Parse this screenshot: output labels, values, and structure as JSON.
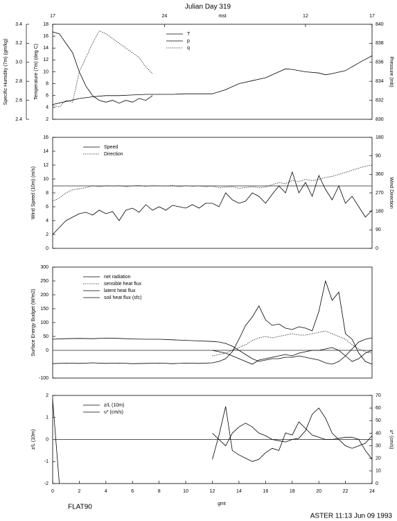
{
  "chart_data": [
    {
      "type": "line",
      "title": "Julian Day 319",
      "xlim": [
        0,
        24
      ],
      "top_xticks": [
        {
          "value": 0,
          "label": "17"
        },
        {
          "value": 8.4,
          "label": "24"
        },
        {
          "value": 19,
          "label": "12"
        },
        {
          "value": 24,
          "label": "17"
        }
      ],
      "top_xlabel": "mst",
      "ylabel": "Temperature (7m) (deg C)",
      "ylim": [
        2,
        18
      ],
      "yticks": [
        2,
        4,
        6,
        8,
        10,
        12,
        14,
        16,
        18
      ],
      "y2label": "Pressure (mb)",
      "y2lim": [
        830,
        840
      ],
      "y2ticks": [
        830,
        832,
        834,
        836,
        838,
        840
      ],
      "y3label": "Specific Humidity (7m) (gm/kg)",
      "y3lim": [
        2.4,
        3.4
      ],
      "y3ticks": [
        2.4,
        2.6,
        2.8,
        {
          "value": 3,
          "label": "3.0"
        },
        3.2,
        3.4
      ],
      "legend": "upper center",
      "series": [
        {
          "name": "T",
          "color": "#000000",
          "axis": "y",
          "dash": false,
          "x": [
            0,
            1,
            2,
            3,
            4,
            5,
            6,
            7,
            8,
            9,
            10,
            11,
            12,
            13,
            14,
            15,
            16,
            17,
            17.5,
            18,
            19,
            20,
            20.5,
            21,
            22,
            23,
            24
          ],
          "values": [
            4.5,
            5,
            5.5,
            5.8,
            6,
            6,
            6.1,
            6.2,
            6.2,
            6.2,
            6.3,
            6.3,
            6.3,
            7,
            8,
            8.5,
            9,
            10,
            10.5,
            10.4,
            10,
            9.8,
            9.5,
            9.7,
            10.2,
            11.5,
            12.7
          ]
        },
        {
          "name": "p",
          "color": "#000000",
          "axis": "y2",
          "dash": false,
          "x": [
            0,
            0.5,
            1,
            1.5,
            2,
            2.5,
            3,
            3.5,
            4,
            4.5,
            5,
            5.5,
            6,
            6.5,
            7,
            7.5
          ],
          "values": [
            839.2,
            839,
            838,
            837,
            835,
            833.5,
            832.5,
            832,
            831.8,
            832,
            831.7,
            832,
            831.8,
            832.2,
            832,
            832.5
          ]
        },
        {
          "name": "q",
          "color": "#000000",
          "axis": "y3",
          "dash": true,
          "x": [
            0,
            0.5,
            1,
            1.5,
            2,
            2.5,
            3,
            3.5,
            4,
            4.5,
            5,
            5.5,
            6,
            6.5,
            7,
            7.5
          ],
          "values": [
            2.55,
            2.53,
            2.6,
            2.58,
            2.9,
            3.05,
            3.2,
            3.33,
            3.3,
            3.25,
            3.2,
            3.15,
            3.1,
            3.05,
            2.95,
            2.88
          ]
        }
      ]
    },
    {
      "type": "line",
      "xlim": [
        0,
        24
      ],
      "ylabel": "Wind Speed (10m) (m/s)",
      "ylim": [
        0,
        16
      ],
      "yticks": [
        0,
        2,
        4,
        6,
        8,
        10,
        12,
        14,
        16
      ],
      "y2label": "Wind Direction",
      "y2lim": [
        0,
        540
      ],
      "y2ticks": [
        0,
        90,
        180,
        270,
        360,
        {
          "value": 450,
          "label": "90"
        },
        {
          "value": 540,
          "label": "180"
        }
      ],
      "hline": 9,
      "legend": "upper left",
      "series": [
        {
          "name": "Speed",
          "color": "#000000",
          "axis": "y",
          "dash": false,
          "x": [
            0,
            0.5,
            1,
            1.5,
            2,
            2.5,
            3,
            3.5,
            4,
            4.5,
            5,
            5.5,
            6,
            6.5,
            7,
            7.5,
            8,
            8.5,
            9,
            9.5,
            10,
            10.5,
            11,
            11.5,
            12,
            12.5,
            13,
            13.5,
            14,
            14.5,
            15,
            15.5,
            16,
            16.5,
            17,
            17.5,
            18,
            18.5,
            19,
            19.5,
            20,
            20.5,
            21,
            21.5,
            22,
            22.5,
            23,
            23.5,
            24
          ],
          "values": [
            2,
            3,
            4,
            4.5,
            5,
            5.2,
            4.8,
            5.5,
            5,
            5.3,
            4,
            5.5,
            5.8,
            5.2,
            6.3,
            5.5,
            6,
            5.5,
            6.2,
            6,
            5.8,
            6.3,
            5.8,
            6.5,
            6.5,
            6,
            8,
            7,
            6.5,
            6.8,
            8,
            7.5,
            6.5,
            7.8,
            9,
            8,
            11,
            8,
            9.5,
            7.5,
            10.5,
            8.5,
            7,
            9,
            6.5,
            7.5,
            6,
            4.5,
            5.5
          ]
        },
        {
          "name": "Direction",
          "color": "#000000",
          "axis": "y2",
          "dash": true,
          "x": [
            0,
            0.5,
            1,
            1.5,
            2,
            2.5,
            3,
            3.5,
            4,
            4.5,
            5,
            5.5,
            6,
            6.5,
            7,
            7.5,
            8,
            8.5,
            9,
            9.5,
            10,
            10.5,
            11,
            11.5,
            12,
            12.5,
            13,
            13.5,
            14,
            14.5,
            15,
            15.5,
            16,
            16.5,
            17,
            17.5,
            18,
            18.5,
            19,
            19.5,
            20,
            20.5,
            21,
            21.5,
            22,
            22.5,
            23,
            23.5,
            24
          ],
          "values": [
            230,
            245,
            270,
            285,
            290,
            295,
            305,
            300,
            305,
            303,
            305,
            300,
            304,
            306,
            302,
            305,
            304,
            303,
            306,
            300,
            305,
            302,
            304,
            300,
            303,
            295,
            298,
            300,
            292,
            296,
            300,
            295,
            298,
            310,
            320,
            315,
            330,
            325,
            335,
            330,
            335,
            345,
            350,
            360,
            370,
            380,
            390,
            400,
            405
          ]
        }
      ]
    },
    {
      "type": "line",
      "xlim": [
        0,
        24
      ],
      "ylabel": "Surface Energy Budget (W/m2)",
      "ylim": [
        -100,
        300
      ],
      "yticks": [
        300,
        250,
        200,
        150,
        100,
        50,
        0,
        -100
      ],
      "hline": 0,
      "legend": "upper left",
      "series": [
        {
          "name": "net radiation",
          "color": "#000000",
          "axis": "y",
          "dash": false,
          "x": [
            0,
            1,
            2,
            3,
            4,
            5,
            6,
            7,
            8,
            9,
            10,
            11,
            12,
            12.5,
            13,
            13.5,
            14,
            14.5,
            15,
            15.5,
            16,
            16.5,
            17,
            17.5,
            18,
            18.5,
            19,
            19.5,
            20,
            20.5,
            21,
            21.5,
            22,
            22.5,
            23,
            23.5,
            24
          ],
          "values": [
            -48,
            -46,
            -47,
            -45,
            -47,
            -46,
            -48,
            -47,
            -46,
            -48,
            -46,
            -47,
            -45,
            -40,
            -30,
            -5,
            40,
            90,
            120,
            160,
            110,
            90,
            95,
            80,
            75,
            85,
            80,
            70,
            140,
            250,
            180,
            210,
            60,
            40,
            -10,
            -40,
            -50
          ]
        },
        {
          "name": "sensible heat flux",
          "color": "#000000",
          "axis": "y",
          "dash": true,
          "x": [
            12,
            12.5,
            13,
            13.5,
            14,
            14.5,
            15,
            15.5,
            16,
            16.5,
            17,
            17.5,
            18,
            18.5,
            19,
            19.5,
            20,
            20.5,
            21,
            21.5,
            22,
            22.5,
            23,
            23.5,
            24
          ],
          "values": [
            -20,
            -15,
            -10,
            0,
            10,
            20,
            35,
            45,
            50,
            45,
            50,
            55,
            60,
            55,
            55,
            60,
            65,
            70,
            60,
            50,
            40,
            20,
            5,
            -5,
            -10
          ]
        },
        {
          "name": "latent heat flux",
          "color": "#000000",
          "axis": "y",
          "dash": false,
          "x": [
            12,
            12.5,
            13,
            13.5,
            14,
            14.5,
            15,
            15.5,
            16,
            16.5,
            17,
            17.5,
            18,
            18.5,
            19,
            19.5,
            20,
            20.5,
            21,
            21.5,
            22,
            22.5,
            23,
            23.5,
            24
          ],
          "values": [
            0,
            -5,
            -10,
            -20,
            -30,
            -40,
            -50,
            -35,
            -30,
            -25,
            -20,
            -15,
            -20,
            -10,
            -5,
            0,
            0,
            5,
            10,
            0,
            -20,
            -40,
            -30,
            -10,
            0
          ]
        },
        {
          "name": "soil heat flux (sfc)",
          "color": "#000000",
          "axis": "y",
          "dash": false,
          "x": [
            0,
            1,
            2,
            3,
            4,
            5,
            6,
            7,
            8,
            9,
            10,
            11,
            12,
            12.5,
            13,
            13.5,
            14,
            14.5,
            15,
            15.5,
            16,
            16.5,
            17,
            17.5,
            18,
            18.5,
            19,
            19.5,
            20,
            20.5,
            21,
            21.5,
            22,
            22.5,
            23,
            23.5,
            24
          ],
          "values": [
            40,
            42,
            43,
            42,
            44,
            43,
            41,
            40,
            40,
            38,
            36,
            34,
            32,
            30,
            25,
            15,
            0,
            -15,
            -30,
            -40,
            -35,
            -30,
            -30,
            -25,
            -25,
            -20,
            -25,
            -30,
            -35,
            -45,
            -50,
            -40,
            -20,
            5,
            30,
            40,
            45
          ]
        }
      ]
    },
    {
      "type": "line",
      "xlim": [
        0,
        24
      ],
      "xticks": [
        0,
        2,
        4,
        6,
        8,
        10,
        12,
        14,
        16,
        18,
        20,
        22,
        24
      ],
      "xlabel": "gmt",
      "ylabel": "z/L (10m)",
      "ylim": [
        -2,
        2
      ],
      "yticks": [
        -2,
        -1,
        0,
        1,
        2
      ],
      "y2label": "u* (cm/s)",
      "y2lim": [
        0,
        70
      ],
      "y2ticks": [
        0,
        10,
        20,
        30,
        40,
        50,
        60,
        70
      ],
      "hline": 0,
      "legend": "upper left",
      "series": [
        {
          "name": "z/L (10m)",
          "color": "#000000",
          "axis": "y",
          "dash": false,
          "x": [
            0,
            0.5,
            6,
            12,
            12.5,
            13,
            13.5,
            14,
            14.5,
            15,
            15.5,
            16,
            16.5,
            17,
            17.5,
            18,
            18.5,
            19,
            19.5,
            20,
            20.5,
            21,
            21.5,
            22,
            22.5,
            23,
            23.5,
            24
          ],
          "values": [
            1.8,
            -2,
            null,
            -0.9,
            0.2,
            1.5,
            -0.5,
            -0.7,
            -0.85,
            -1,
            -0.9,
            -0.6,
            -0.4,
            -0.5,
            0.3,
            0.2,
            0.8,
            0.5,
            0.2,
            0.1,
            0,
            0,
            0.05,
            0.1,
            0.1,
            0,
            -0.5,
            -0.9
          ]
        },
        {
          "name": "u* (cm/s)",
          "color": "#000000",
          "axis": "y2",
          "dash": false,
          "x": [
            12,
            12.5,
            13,
            13.5,
            14,
            14.5,
            15,
            15.5,
            16,
            16.5,
            17,
            17.5,
            18,
            18.5,
            19,
            19.5,
            20,
            20.5,
            21,
            21.5,
            22,
            22.5,
            23,
            23.5,
            24
          ],
          "values": [
            40,
            35,
            30,
            40,
            45,
            48,
            45,
            40,
            38,
            35,
            34,
            33,
            35,
            36,
            42,
            55,
            60,
            52,
            40,
            35,
            30,
            28,
            30,
            32,
            38
          ]
        }
      ]
    }
  ],
  "footer": {
    "left": "FLAT90",
    "right": "ASTER 11:13 Jun 09 1993"
  }
}
